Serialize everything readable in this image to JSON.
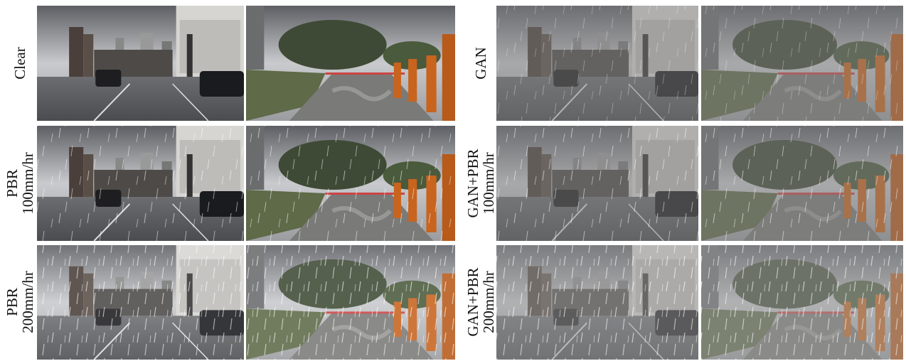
{
  "left_panel": {
    "rows": [
      {
        "label_lines": [
          "Clear"
        ]
      },
      {
        "label_lines": [
          "PBR",
          "100mm/hr"
        ]
      },
      {
        "label_lines": [
          "PBR",
          "200mm/hr"
        ]
      }
    ]
  },
  "right_panel": {
    "rows": [
      {
        "label_lines": [
          "GAN"
        ]
      },
      {
        "label_lines": [
          "GAN+PBR",
          "100mm/hr"
        ]
      },
      {
        "label_lines": [
          "GAN+PBR",
          "200mm/hr"
        ]
      }
    ]
  }
}
